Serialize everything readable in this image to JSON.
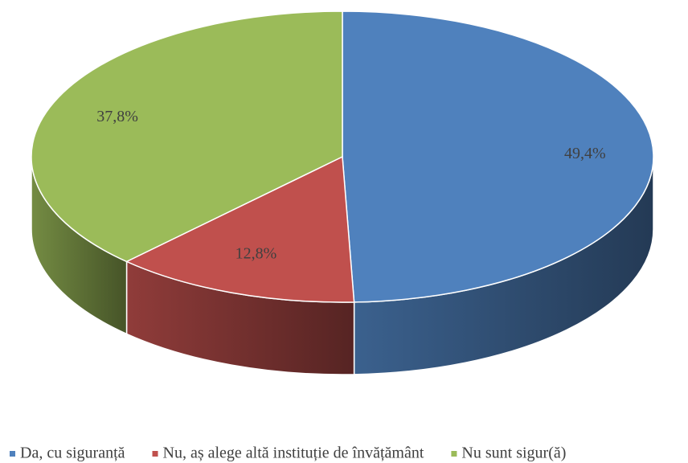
{
  "chart_data": {
    "type": "pie3d",
    "categories": [
      "Da, cu siguranță",
      "Nu, aș alege altă instituție de învățământ",
      "Nu sunt sigur(ă)"
    ],
    "values": [
      49.4,
      12.8,
      37.8
    ],
    "value_labels": [
      "49,4%",
      "12,8%",
      "37,8%"
    ],
    "colors": [
      "#4f81bd",
      "#c0504d",
      "#9bbb59"
    ],
    "legend": "bottom"
  }
}
